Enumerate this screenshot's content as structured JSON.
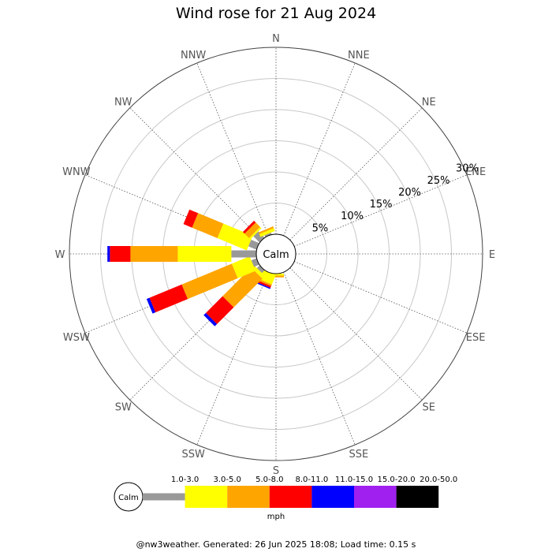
{
  "chart_data": {
    "type": "wind-rose",
    "title": "Wind rose for 21 Aug 2024",
    "directions": [
      "N",
      "NNE",
      "NE",
      "ENE",
      "E",
      "ESE",
      "SE",
      "SSE",
      "S",
      "SSW",
      "SW",
      "WSW",
      "W",
      "WNW",
      "NW",
      "NNW"
    ],
    "radial_ticks": [
      "5%",
      "10%",
      "15%",
      "20%",
      "25%",
      "30%"
    ],
    "radial_max_percent": 30,
    "calm_label": "Calm",
    "units_label": "mph",
    "speed_bins": [
      {
        "label": "1.0-3.0",
        "color": "#999999"
      },
      {
        "label": "3.0-5.0",
        "color": "#ffff00"
      },
      {
        "label": "5.0-8.0",
        "color": "#ffa500"
      },
      {
        "label": "8.0-11.0",
        "color": "#ff0000"
      },
      {
        "label": "11.0-15.0",
        "color": "#0000ff"
      },
      {
        "label": "15.0-20.0",
        "color": "#a020f0"
      },
      {
        "label": "20.0-50.0",
        "color": "#000000"
      }
    ],
    "series": [
      {
        "direction": "N",
        "values": [
          0,
          0,
          0,
          0,
          0,
          0,
          0
        ]
      },
      {
        "direction": "NNE",
        "values": [
          0,
          0,
          0,
          0,
          0,
          0,
          0
        ]
      },
      {
        "direction": "NE",
        "values": [
          0,
          0,
          0,
          0,
          0,
          0,
          0
        ]
      },
      {
        "direction": "ENE",
        "values": [
          0,
          0,
          0,
          0,
          0,
          0,
          0
        ]
      },
      {
        "direction": "E",
        "values": [
          0,
          0,
          0,
          0,
          0,
          0,
          0
        ]
      },
      {
        "direction": "ESE",
        "values": [
          0,
          0,
          0,
          0,
          0,
          0,
          0
        ]
      },
      {
        "direction": "SE",
        "values": [
          0,
          0,
          0,
          0,
          0,
          0,
          0
        ]
      },
      {
        "direction": "SSE",
        "values": [
          0,
          0,
          0,
          0,
          0,
          0,
          0
        ]
      },
      {
        "direction": "S",
        "values": [
          0,
          0.3,
          0.3,
          0.0,
          0,
          0,
          0
        ]
      },
      {
        "direction": "SSW",
        "values": [
          0,
          1.6,
          0.3,
          0.3,
          0.2,
          0,
          0
        ]
      },
      {
        "direction": "SW",
        "values": [
          0.6,
          0.6,
          6.5,
          3.8,
          0.5,
          0,
          0
        ]
      },
      {
        "direction": "WSW",
        "values": [
          0.9,
          3.1,
          8.7,
          5.6,
          0.5,
          0,
          0
        ]
      },
      {
        "direction": "W",
        "values": [
          4.0,
          8.6,
          7.6,
          3.3,
          0.4,
          0,
          0
        ]
      },
      {
        "direction": "WNW",
        "values": [
          1.4,
          5.1,
          4.4,
          1.5,
          0,
          0,
          0
        ]
      },
      {
        "direction": "NW",
        "values": [
          1.4,
          0.3,
          1.0,
          0.4,
          0,
          0,
          0
        ]
      },
      {
        "direction": "NNW",
        "values": [
          0.3,
          0.5,
          0.3,
          0,
          0,
          0,
          0
        ]
      }
    ]
  },
  "footer": "@nw3weather. Generated: 26 Jun 2025 18:08; Load time: 0.15 s"
}
